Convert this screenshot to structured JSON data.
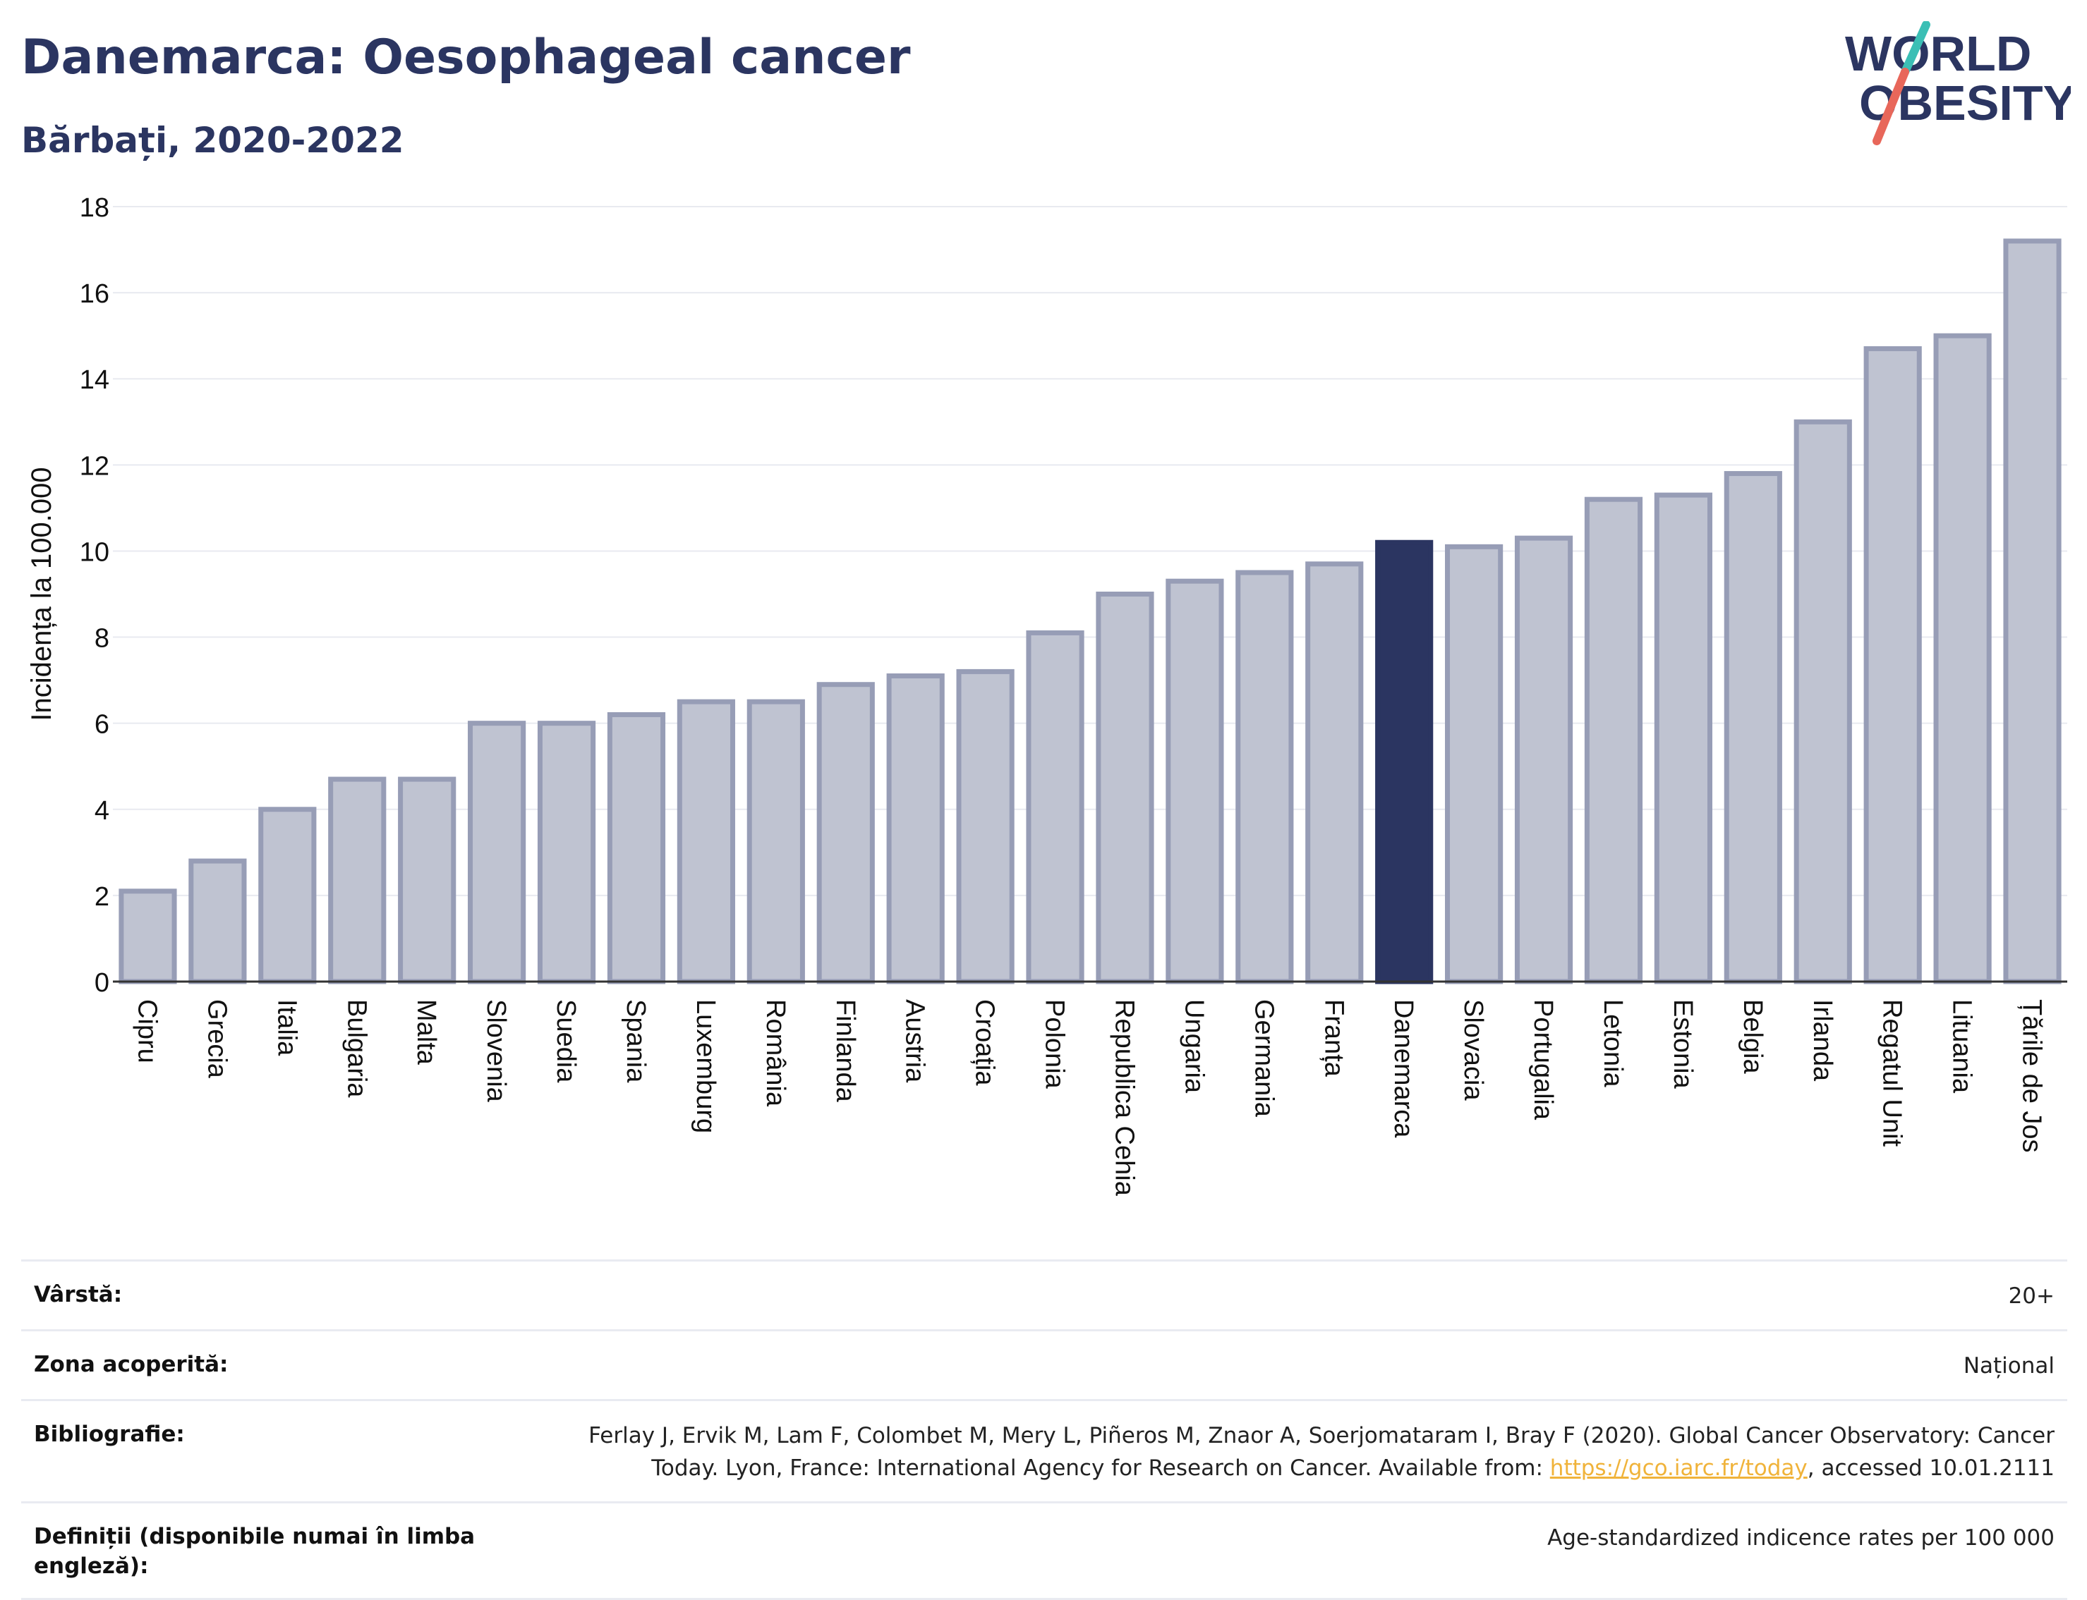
{
  "header": {
    "title": "Danemarca: Oesophageal cancer",
    "subtitle": "Bărbați, 2020-2022"
  },
  "logo": {
    "line1": "WORLD",
    "line2": "OBESITY"
  },
  "colors": {
    "title": "#2b3561",
    "bar_default": "#bfc3d1",
    "bar_border": "#979db6",
    "bar_highlight": "#2b3561",
    "link": "#f0b33a",
    "logo_teal": "#3bbfb5",
    "logo_red": "#e8675a"
  },
  "chart_data": {
    "type": "bar",
    "ylabel": "Incidența la 100.000",
    "xlabel": "",
    "ylim": [
      0,
      18
    ],
    "yticks": [
      0,
      2,
      4,
      6,
      8,
      10,
      12,
      14,
      16,
      18
    ],
    "grid": true,
    "highlight": "Danemarca",
    "categories": [
      "Cipru",
      "Grecia",
      "Italia",
      "Bulgaria",
      "Malta",
      "Slovenia",
      "Suedia",
      "Spania",
      "Luxemburg",
      "România",
      "Finlanda",
      "Austria",
      "Croația",
      "Polonia",
      "Republica Cehia",
      "Ungaria",
      "Germania",
      "Franța",
      "Danemarca",
      "Slovacia",
      "Portugalia",
      "Letonia",
      "Estonia",
      "Belgia",
      "Irlanda",
      "Regatul Unit",
      "Lituania",
      "Țările de Jos"
    ],
    "values": [
      2.1,
      2.8,
      4.0,
      4.7,
      4.7,
      6.0,
      6.0,
      6.2,
      6.5,
      6.5,
      6.9,
      7.1,
      7.2,
      8.1,
      9.0,
      9.3,
      9.5,
      9.7,
      10.2,
      10.1,
      10.3,
      11.2,
      11.3,
      11.8,
      13.0,
      14.7,
      15.0,
      17.2
    ]
  },
  "meta": {
    "age_label": "Vârstă:",
    "age_value": "20+",
    "area_label": "Zona acoperită:",
    "area_value": "Național",
    "bib_label": "Bibliografie:",
    "bib_line1": "Ferlay J, Ervik M, Lam F, Colombet M, Mery L, Piñeros M, Znaor A, Soerjomataram I, Bray F (2020). Global Cancer Observatory: Cancer",
    "bib_line2_pre": "Today. Lyon, France: International Agency for Research on Cancer. Available from: ",
    "bib_link": "https://gco.iarc.fr/today",
    "bib_line2_post": ", accessed 10.01.2111",
    "def_label": "Definiții (disponibile numai în limba engleză):",
    "def_value": "Age-standardized indicence rates per 100 000"
  }
}
